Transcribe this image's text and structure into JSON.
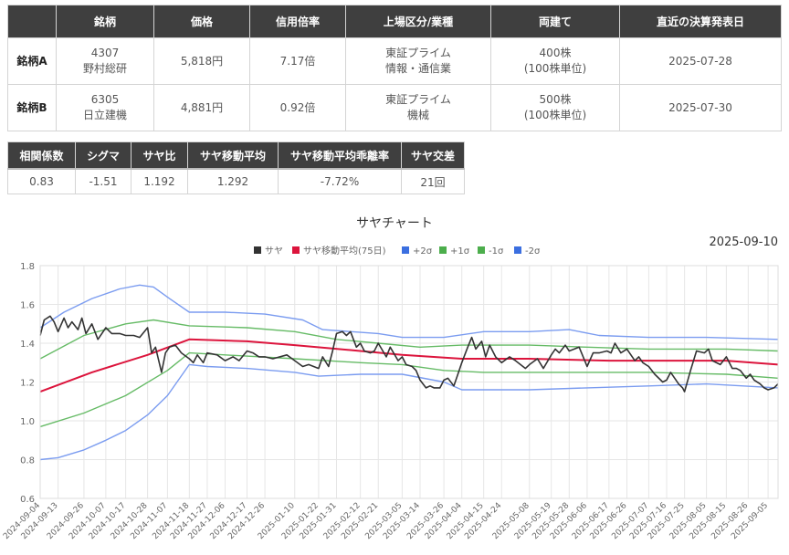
{
  "stocks_table": {
    "headers": [
      "",
      "銘柄",
      "価格",
      "信用倍率",
      "上場区分/業種",
      "両建て",
      "直近の決算発表日"
    ],
    "rows": [
      {
        "label": "銘柄A",
        "code": "4307",
        "name": "野村総研",
        "price": "5,818円",
        "ratio": "7.17倍",
        "market": "東証プライム",
        "sector": "情報・通信業",
        "qty": "400株",
        "unit": "(100株単位)",
        "date": "2025-07-28"
      },
      {
        "label": "銘柄B",
        "code": "6305",
        "name": "日立建機",
        "price": "4,881円",
        "ratio": "0.92倍",
        "market": "東証プライム",
        "sector": "機械",
        "qty": "500株",
        "unit": "(100株単位)",
        "date": "2025-07-30"
      }
    ]
  },
  "stats_table": {
    "headers": [
      "相関係数",
      "シグマ",
      "サヤ比",
      "サヤ移動平均",
      "サヤ移動平均乖離率",
      "サヤ交差"
    ],
    "values": [
      "0.83",
      "-1.51",
      "1.192",
      "1.292",
      "-7.72%",
      "21回"
    ]
  },
  "chart_data": {
    "type": "line",
    "title": "サヤチャート",
    "date_label": "2025-09-10",
    "ylim": [
      0.6,
      1.8
    ],
    "yticks": [
      "0.6",
      "0.8",
      "1.0",
      "1.2",
      "1.4",
      "1.6",
      "1.8"
    ],
    "grid": true,
    "legend_position": "top",
    "x_start": "2024-09-04",
    "x_end": "2025-09-10",
    "xticks": [
      "2024-09-04",
      "2024-09-13",
      "2024-09-26",
      "2024-10-07",
      "2024-10-17",
      "2024-10-28",
      "2024-11-07",
      "2024-11-18",
      "2024-11-27",
      "2024-12-06",
      "2024-12-17",
      "2024-12-26",
      "2025-01-10",
      "2025-01-22",
      "2025-01-31",
      "2025-02-12",
      "2025-02-21",
      "2025-03-05",
      "2025-03-14",
      "2025-03-26",
      "2025-04-04",
      "2025-04-15",
      "2025-04-24",
      "2025-05-08",
      "2025-05-19",
      "2025-05-28",
      "2025-06-06",
      "2025-06-17",
      "2025-06-26",
      "2025-07-07",
      "2025-07-16",
      "2025-07-25",
      "2025-08-05",
      "2025-08-15",
      "2025-08-26",
      "2025-09-05"
    ],
    "series": [
      {
        "name": "サヤ",
        "color": "#333333",
        "points": [
          [
            "2024-09-04",
            1.44
          ],
          [
            "2024-09-06",
            1.52
          ],
          [
            "2024-09-09",
            1.54
          ],
          [
            "2024-09-11",
            1.51
          ],
          [
            "2024-09-13",
            1.46
          ],
          [
            "2024-09-16",
            1.53
          ],
          [
            "2024-09-18",
            1.48
          ],
          [
            "2024-09-20",
            1.51
          ],
          [
            "2024-09-23",
            1.47
          ],
          [
            "2024-09-25",
            1.53
          ],
          [
            "2024-09-27",
            1.45
          ],
          [
            "2024-09-30",
            1.5
          ],
          [
            "2024-10-03",
            1.42
          ],
          [
            "2024-10-07",
            1.48
          ],
          [
            "2024-10-10",
            1.45
          ],
          [
            "2024-10-14",
            1.45
          ],
          [
            "2024-10-17",
            1.44
          ],
          [
            "2024-10-21",
            1.44
          ],
          [
            "2024-10-24",
            1.43
          ],
          [
            "2024-10-28",
            1.48
          ],
          [
            "2024-10-30",
            1.35
          ],
          [
            "2024-11-01",
            1.38
          ],
          [
            "2024-11-04",
            1.25
          ],
          [
            "2024-11-06",
            1.35
          ],
          [
            "2024-11-08",
            1.38
          ],
          [
            "2024-11-11",
            1.39
          ],
          [
            "2024-11-14",
            1.35
          ],
          [
            "2024-11-18",
            1.32
          ],
          [
            "2024-11-20",
            1.3
          ],
          [
            "2024-11-22",
            1.34
          ],
          [
            "2024-11-25",
            1.3
          ],
          [
            "2024-11-27",
            1.35
          ],
          [
            "2024-12-02",
            1.34
          ],
          [
            "2024-12-06",
            1.31
          ],
          [
            "2024-12-10",
            1.33
          ],
          [
            "2024-12-13",
            1.31
          ],
          [
            "2024-12-17",
            1.36
          ],
          [
            "2024-12-20",
            1.35
          ],
          [
            "2024-12-23",
            1.33
          ],
          [
            "2024-12-26",
            1.33
          ],
          [
            "2024-12-30",
            1.32
          ],
          [
            "2025-01-06",
            1.34
          ],
          [
            "2025-01-10",
            1.31
          ],
          [
            "2025-01-14",
            1.28
          ],
          [
            "2025-01-17",
            1.29
          ],
          [
            "2025-01-22",
            1.27
          ],
          [
            "2025-01-24",
            1.33
          ],
          [
            "2025-01-27",
            1.28
          ],
          [
            "2025-01-29",
            1.36
          ],
          [
            "2025-01-31",
            1.45
          ],
          [
            "2025-02-03",
            1.46
          ],
          [
            "2025-02-05",
            1.44
          ],
          [
            "2025-02-07",
            1.46
          ],
          [
            "2025-02-10",
            1.38
          ],
          [
            "2025-02-12",
            1.4
          ],
          [
            "2025-02-14",
            1.36
          ],
          [
            "2025-02-17",
            1.35
          ],
          [
            "2025-02-19",
            1.36
          ],
          [
            "2025-02-21",
            1.4
          ],
          [
            "2025-02-25",
            1.33
          ],
          [
            "2025-02-27",
            1.38
          ],
          [
            "2025-03-03",
            1.31
          ],
          [
            "2025-03-05",
            1.33
          ],
          [
            "2025-03-07",
            1.29
          ],
          [
            "2025-03-10",
            1.28
          ],
          [
            "2025-03-12",
            1.26
          ],
          [
            "2025-03-14",
            1.21
          ],
          [
            "2025-03-17",
            1.17
          ],
          [
            "2025-03-19",
            1.18
          ],
          [
            "2025-03-21",
            1.17
          ],
          [
            "2025-03-24",
            1.17
          ],
          [
            "2025-03-26",
            1.21
          ],
          [
            "2025-03-28",
            1.22
          ],
          [
            "2025-03-31",
            1.18
          ],
          [
            "2025-04-02",
            1.24
          ],
          [
            "2025-04-04",
            1.3
          ],
          [
            "2025-04-07",
            1.38
          ],
          [
            "2025-04-09",
            1.43
          ],
          [
            "2025-04-11",
            1.37
          ],
          [
            "2025-04-14",
            1.41
          ],
          [
            "2025-04-16",
            1.33
          ],
          [
            "2025-04-18",
            1.39
          ],
          [
            "2025-04-21",
            1.33
          ],
          [
            "2025-04-24",
            1.3
          ],
          [
            "2025-04-28",
            1.33
          ],
          [
            "2025-05-01",
            1.31
          ],
          [
            "2025-05-06",
            1.27
          ],
          [
            "2025-05-08",
            1.29
          ],
          [
            "2025-05-12",
            1.32
          ],
          [
            "2025-05-15",
            1.27
          ],
          [
            "2025-05-19",
            1.34
          ],
          [
            "2025-05-21",
            1.37
          ],
          [
            "2025-05-23",
            1.35
          ],
          [
            "2025-05-26",
            1.39
          ],
          [
            "2025-05-28",
            1.36
          ],
          [
            "2025-06-02",
            1.38
          ],
          [
            "2025-06-04",
            1.33
          ],
          [
            "2025-06-06",
            1.28
          ],
          [
            "2025-06-09",
            1.35
          ],
          [
            "2025-06-12",
            1.35
          ],
          [
            "2025-06-16",
            1.36
          ],
          [
            "2025-06-18",
            1.35
          ],
          [
            "2025-06-20",
            1.4
          ],
          [
            "2025-06-23",
            1.35
          ],
          [
            "2025-06-26",
            1.37
          ],
          [
            "2025-06-30",
            1.31
          ],
          [
            "2025-07-02",
            1.33
          ],
          [
            "2025-07-04",
            1.3
          ],
          [
            "2025-07-07",
            1.28
          ],
          [
            "2025-07-10",
            1.24
          ],
          [
            "2025-07-14",
            1.2
          ],
          [
            "2025-07-16",
            1.21
          ],
          [
            "2025-07-18",
            1.25
          ],
          [
            "2025-07-22",
            1.19
          ],
          [
            "2025-07-24",
            1.17
          ],
          [
            "2025-07-25",
            1.15
          ],
          [
            "2025-07-28",
            1.26
          ],
          [
            "2025-07-31",
            1.36
          ],
          [
            "2025-08-04",
            1.35
          ],
          [
            "2025-08-06",
            1.37
          ],
          [
            "2025-08-08",
            1.31
          ],
          [
            "2025-08-12",
            1.29
          ],
          [
            "2025-08-15",
            1.33
          ],
          [
            "2025-08-18",
            1.27
          ],
          [
            "2025-08-20",
            1.27
          ],
          [
            "2025-08-22",
            1.26
          ],
          [
            "2025-08-25",
            1.22
          ],
          [
            "2025-08-27",
            1.24
          ],
          [
            "2025-08-29",
            1.21
          ],
          [
            "2025-09-01",
            1.19
          ],
          [
            "2025-09-03",
            1.17
          ],
          [
            "2025-09-05",
            1.16
          ],
          [
            "2025-09-08",
            1.17
          ],
          [
            "2025-09-10",
            1.19
          ]
        ]
      },
      {
        "name": "サヤ移動平均(75日)",
        "color": "#dc143c",
        "points": [
          [
            "2024-09-04",
            1.15
          ],
          [
            "2024-09-30",
            1.25
          ],
          [
            "2024-10-28",
            1.34
          ],
          [
            "2024-11-18",
            1.42
          ],
          [
            "2024-12-17",
            1.41
          ],
          [
            "2025-01-10",
            1.39
          ],
          [
            "2025-02-12",
            1.36
          ],
          [
            "2025-03-05",
            1.34
          ],
          [
            "2025-04-04",
            1.32
          ],
          [
            "2025-05-08",
            1.32
          ],
          [
            "2025-06-17",
            1.31
          ],
          [
            "2025-07-16",
            1.31
          ],
          [
            "2025-08-15",
            1.31
          ],
          [
            "2025-09-10",
            1.29
          ]
        ]
      },
      {
        "name": "+2σ",
        "color": "#7b9cf0",
        "points": [
          [
            "2024-09-04",
            1.48
          ],
          [
            "2024-09-16",
            1.56
          ],
          [
            "2024-09-30",
            1.63
          ],
          [
            "2024-10-14",
            1.68
          ],
          [
            "2024-10-24",
            1.7
          ],
          [
            "2024-10-31",
            1.69
          ],
          [
            "2024-11-08",
            1.63
          ],
          [
            "2024-11-18",
            1.56
          ],
          [
            "2024-12-06",
            1.56
          ],
          [
            "2024-12-26",
            1.55
          ],
          [
            "2025-01-14",
            1.52
          ],
          [
            "2025-01-24",
            1.47
          ],
          [
            "2025-02-21",
            1.45
          ],
          [
            "2025-03-05",
            1.43
          ],
          [
            "2025-03-26",
            1.43
          ],
          [
            "2025-04-15",
            1.46
          ],
          [
            "2025-05-08",
            1.46
          ],
          [
            "2025-05-28",
            1.47
          ],
          [
            "2025-06-12",
            1.44
          ],
          [
            "2025-07-07",
            1.43
          ],
          [
            "2025-08-05",
            1.43
          ],
          [
            "2025-09-10",
            1.42
          ]
        ]
      },
      {
        "name": "+1σ",
        "color": "#66bb66",
        "points": [
          [
            "2024-09-04",
            1.32
          ],
          [
            "2024-09-26",
            1.44
          ],
          [
            "2024-10-17",
            1.5
          ],
          [
            "2024-10-31",
            1.52
          ],
          [
            "2024-11-18",
            1.49
          ],
          [
            "2024-12-17",
            1.48
          ],
          [
            "2025-01-10",
            1.46
          ],
          [
            "2025-01-31",
            1.42
          ],
          [
            "2025-02-21",
            1.4
          ],
          [
            "2025-03-14",
            1.38
          ],
          [
            "2025-04-04",
            1.39
          ],
          [
            "2025-05-08",
            1.39
          ],
          [
            "2025-06-06",
            1.38
          ],
          [
            "2025-07-07",
            1.37
          ],
          [
            "2025-08-15",
            1.37
          ],
          [
            "2025-09-10",
            1.36
          ]
        ]
      },
      {
        "name": "-1σ",
        "color": "#66bb66",
        "points": [
          [
            "2024-09-04",
            0.97
          ],
          [
            "2024-09-26",
            1.04
          ],
          [
            "2024-10-17",
            1.13
          ],
          [
            "2024-11-07",
            1.26
          ],
          [
            "2024-11-18",
            1.35
          ],
          [
            "2024-12-06",
            1.34
          ],
          [
            "2025-01-10",
            1.32
          ],
          [
            "2025-02-12",
            1.3
          ],
          [
            "2025-03-05",
            1.29
          ],
          [
            "2025-03-26",
            1.26
          ],
          [
            "2025-04-15",
            1.25
          ],
          [
            "2025-05-08",
            1.25
          ],
          [
            "2025-06-06",
            1.25
          ],
          [
            "2025-07-07",
            1.25
          ],
          [
            "2025-08-15",
            1.24
          ],
          [
            "2025-09-10",
            1.22
          ]
        ]
      },
      {
        "name": "-2σ",
        "color": "#7b9cf0",
        "points": [
          [
            "2024-09-04",
            0.8
          ],
          [
            "2024-09-13",
            0.81
          ],
          [
            "2024-09-26",
            0.85
          ],
          [
            "2024-10-07",
            0.9
          ],
          [
            "2024-10-17",
            0.95
          ],
          [
            "2024-10-28",
            1.03
          ],
          [
            "2024-11-07",
            1.13
          ],
          [
            "2024-11-18",
            1.29
          ],
          [
            "2024-11-27",
            1.28
          ],
          [
            "2024-12-17",
            1.27
          ],
          [
            "2025-01-10",
            1.25
          ],
          [
            "2025-01-22",
            1.23
          ],
          [
            "2025-02-12",
            1.24
          ],
          [
            "2025-03-05",
            1.24
          ],
          [
            "2025-03-26",
            1.2
          ],
          [
            "2025-04-04",
            1.16
          ],
          [
            "2025-05-08",
            1.16
          ],
          [
            "2025-06-06",
            1.17
          ],
          [
            "2025-07-07",
            1.18
          ],
          [
            "2025-08-05",
            1.19
          ],
          [
            "2025-09-10",
            1.17
          ]
        ]
      }
    ]
  }
}
